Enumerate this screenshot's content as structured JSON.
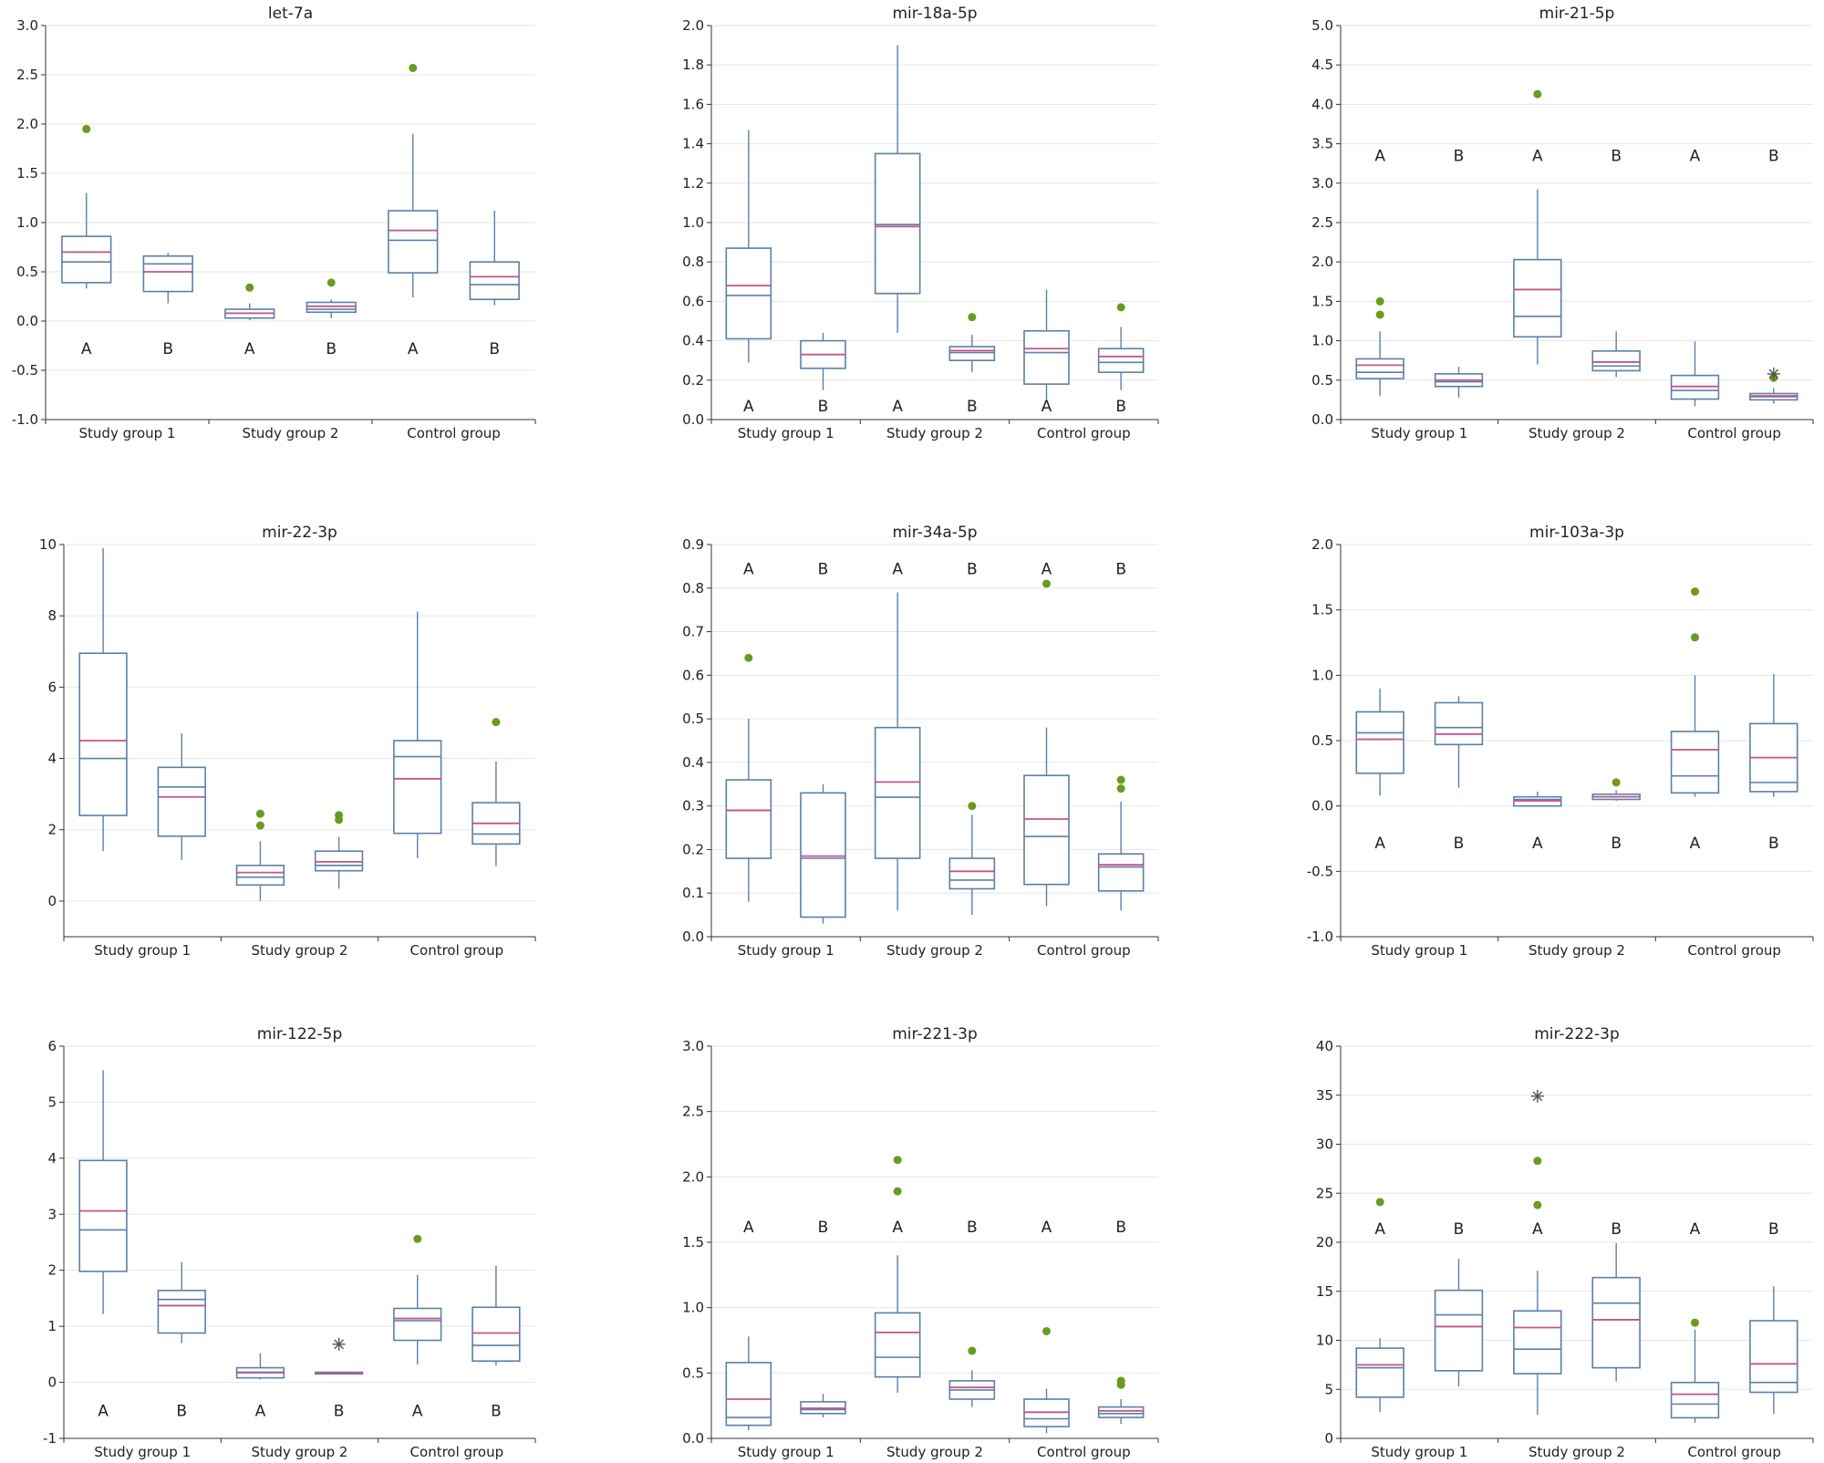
{
  "chart_data": [
    {
      "type": "box",
      "title": "let-7a",
      "ylim": [
        -1.0,
        3.0
      ],
      "yticks": [
        -1.0,
        -0.5,
        0.0,
        0.5,
        1.0,
        1.5,
        2.0,
        2.5,
        3.0
      ],
      "ytick_labels": [
        "-1.0",
        "-0.5",
        "0.0",
        "0.5",
        "1.0",
        "1.5",
        "2.0",
        "2.5",
        "3.0"
      ],
      "groups": [
        "Study group 1",
        "Study group 2",
        "Control group"
      ],
      "letter_y": -0.28,
      "boxes": [
        {
          "group": 0,
          "letter": "A",
          "min": 0.33,
          "q1": 0.39,
          "median": 0.6,
          "mean": 0.7,
          "q3": 0.86,
          "max": 1.3,
          "outliers": [
            1.95
          ],
          "extremes": []
        },
        {
          "group": 0,
          "letter": "B",
          "min": 0.18,
          "q1": 0.3,
          "median": 0.58,
          "mean": 0.5,
          "q3": 0.66,
          "max": 0.69,
          "outliers": [],
          "extremes": []
        },
        {
          "group": 1,
          "letter": "A",
          "min": 0.01,
          "q1": 0.03,
          "median": 0.08,
          "mean": 0.08,
          "q3": 0.12,
          "max": 0.18,
          "outliers": [
            0.34
          ],
          "extremes": []
        },
        {
          "group": 1,
          "letter": "B",
          "min": 0.03,
          "q1": 0.09,
          "median": 0.12,
          "mean": 0.15,
          "q3": 0.19,
          "max": 0.22,
          "outliers": [
            0.39
          ],
          "extremes": []
        },
        {
          "group": 2,
          "letter": "A",
          "min": 0.24,
          "q1": 0.49,
          "median": 0.82,
          "mean": 0.92,
          "q3": 1.12,
          "max": 1.9,
          "outliers": [
            2.57
          ],
          "extremes": []
        },
        {
          "group": 2,
          "letter": "B",
          "min": 0.16,
          "q1": 0.22,
          "median": 0.37,
          "mean": 0.45,
          "q3": 0.6,
          "max": 1.12,
          "outliers": [],
          "extremes": []
        }
      ]
    },
    {
      "type": "box",
      "title": "mir-18a-5p",
      "ylim": [
        0.0,
        2.0
      ],
      "yticks": [
        0.0,
        0.2,
        0.4,
        0.6,
        0.8,
        1.0,
        1.2,
        1.4,
        1.6,
        1.8,
        2.0
      ],
      "ytick_labels": [
        "0.0",
        "0.2",
        "0.4",
        "0.6",
        "0.8",
        "1.0",
        "1.2",
        "1.4",
        "1.6",
        "1.8",
        "2.0"
      ],
      "groups": [
        "Study group 1",
        "Study group 2",
        "Control group"
      ],
      "letter_y": 0.07,
      "boxes": [
        {
          "group": 0,
          "letter": "A",
          "min": 0.29,
          "q1": 0.41,
          "median": 0.63,
          "mean": 0.68,
          "q3": 0.87,
          "max": 1.47,
          "outliers": [],
          "extremes": []
        },
        {
          "group": 0,
          "letter": "B",
          "min": 0.15,
          "q1": 0.26,
          "median": 0.33,
          "mean": 0.33,
          "q3": 0.4,
          "max": 0.44,
          "outliers": [],
          "extremes": []
        },
        {
          "group": 1,
          "letter": "A",
          "min": 0.44,
          "q1": 0.64,
          "median": 0.99,
          "mean": 0.98,
          "q3": 1.35,
          "max": 1.9,
          "outliers": [],
          "extremes": []
        },
        {
          "group": 1,
          "letter": "B",
          "min": 0.24,
          "q1": 0.3,
          "median": 0.34,
          "mean": 0.35,
          "q3": 0.37,
          "max": 0.43,
          "outliers": [
            0.52
          ],
          "extremes": []
        },
        {
          "group": 2,
          "letter": "A",
          "min": 0.1,
          "q1": 0.18,
          "median": 0.34,
          "mean": 0.36,
          "q3": 0.45,
          "max": 0.66,
          "outliers": [],
          "extremes": []
        },
        {
          "group": 2,
          "letter": "B",
          "min": 0.15,
          "q1": 0.24,
          "median": 0.29,
          "mean": 0.32,
          "q3": 0.36,
          "max": 0.47,
          "outliers": [
            0.57
          ],
          "extremes": []
        }
      ]
    },
    {
      "type": "box",
      "title": "mir-21-5p",
      "ylim": [
        0.0,
        5.0
      ],
      "yticks": [
        0.0,
        0.5,
        1.0,
        1.5,
        2.0,
        2.5,
        3.0,
        3.5,
        4.0,
        4.5,
        5.0
      ],
      "ytick_labels": [
        "0.0",
        "0.5",
        "1.0",
        "1.5",
        "2.0",
        "2.5",
        "3.0",
        "3.5",
        "4.0",
        "4.5",
        "5.0"
      ],
      "groups": [
        "Study group 1",
        "Study group 2",
        "Control group"
      ],
      "letter_y": 3.35,
      "boxes": [
        {
          "group": 0,
          "letter": "A",
          "min": 0.3,
          "q1": 0.52,
          "median": 0.6,
          "mean": 0.69,
          "q3": 0.77,
          "max": 1.12,
          "outliers": [
            1.33,
            1.5
          ],
          "extremes": []
        },
        {
          "group": 0,
          "letter": "B",
          "min": 0.28,
          "q1": 0.42,
          "median": 0.48,
          "mean": 0.5,
          "q3": 0.58,
          "max": 0.67,
          "outliers": [],
          "extremes": []
        },
        {
          "group": 1,
          "letter": "A",
          "min": 0.7,
          "q1": 1.05,
          "median": 1.31,
          "mean": 1.65,
          "q3": 2.03,
          "max": 2.92,
          "outliers": [
            4.13
          ],
          "extremes": []
        },
        {
          "group": 1,
          "letter": "B",
          "min": 0.54,
          "q1": 0.62,
          "median": 0.68,
          "mean": 0.73,
          "q3": 0.87,
          "max": 1.12,
          "outliers": [],
          "extremes": []
        },
        {
          "group": 2,
          "letter": "A",
          "min": 0.17,
          "q1": 0.26,
          "median": 0.37,
          "mean": 0.42,
          "q3": 0.56,
          "max": 0.99,
          "outliers": [],
          "extremes": []
        },
        {
          "group": 2,
          "letter": "B",
          "min": 0.2,
          "q1": 0.25,
          "median": 0.29,
          "mean": 0.3,
          "q3": 0.33,
          "max": 0.4,
          "outliers": [
            0.53
          ],
          "extremes": [
            0.58
          ]
        }
      ]
    },
    {
      "type": "box",
      "title": "mir-22-3p",
      "ylim": [
        -1,
        10
      ],
      "yticks": [
        0,
        2,
        4,
        6,
        8,
        10
      ],
      "ytick_labels": [
        "0",
        "2",
        "4",
        "6",
        "8",
        "10"
      ],
      "groups": [
        "Study group 1",
        "Study group 2",
        "Control group"
      ],
      "letter_y": null,
      "boxes": [
        {
          "group": 0,
          "letter": "",
          "min": 1.4,
          "q1": 2.4,
          "median": 4.0,
          "mean": 4.5,
          "q3": 6.95,
          "max": 9.9,
          "outliers": [],
          "extremes": []
        },
        {
          "group": 0,
          "letter": "",
          "min": 1.15,
          "q1": 1.82,
          "median": 3.2,
          "mean": 2.92,
          "q3": 3.75,
          "max": 4.7,
          "outliers": [],
          "extremes": []
        },
        {
          "group": 1,
          "letter": "",
          "min": 0.0,
          "q1": 0.45,
          "median": 0.67,
          "mean": 0.8,
          "q3": 1.0,
          "max": 1.68,
          "outliers": [
            2.12,
            2.45
          ],
          "extremes": []
        },
        {
          "group": 1,
          "letter": "",
          "min": 0.35,
          "q1": 0.85,
          "median": 1.0,
          "mean": 1.1,
          "q3": 1.4,
          "max": 1.8,
          "outliers": [
            2.28,
            2.41
          ],
          "extremes": []
        },
        {
          "group": 2,
          "letter": "",
          "min": 1.2,
          "q1": 1.9,
          "median": 4.05,
          "mean": 3.43,
          "q3": 4.5,
          "max": 8.12,
          "outliers": [],
          "extremes": []
        },
        {
          "group": 2,
          "letter": "",
          "min": 0.98,
          "q1": 1.6,
          "median": 1.88,
          "mean": 2.18,
          "q3": 2.76,
          "max": 3.92,
          "outliers": [
            5.02
          ],
          "extremes": []
        }
      ]
    },
    {
      "type": "box",
      "title": "mir-34a-5p",
      "ylim": [
        0.0,
        0.9
      ],
      "yticks": [
        0.0,
        0.1,
        0.2,
        0.3,
        0.4,
        0.5,
        0.6,
        0.7,
        0.8,
        0.9
      ],
      "ytick_labels": [
        "0.0",
        "0.1",
        "0.2",
        "0.3",
        "0.4",
        "0.5",
        "0.6",
        "0.7",
        "0.8",
        "0.9"
      ],
      "groups": [
        "Study group 1",
        "Study group 2",
        "Control group"
      ],
      "letter_y": 0.845,
      "boxes": [
        {
          "group": 0,
          "letter": "A",
          "min": 0.08,
          "q1": 0.18,
          "median": 0.29,
          "mean": 0.29,
          "q3": 0.36,
          "max": 0.5,
          "outliers": [
            0.64
          ],
          "extremes": []
        },
        {
          "group": 0,
          "letter": "B",
          "min": 0.03,
          "q1": 0.045,
          "median": 0.18,
          "mean": 0.185,
          "q3": 0.33,
          "max": 0.35,
          "outliers": [],
          "extremes": []
        },
        {
          "group": 1,
          "letter": "A",
          "min": 0.06,
          "q1": 0.18,
          "median": 0.32,
          "mean": 0.355,
          "q3": 0.48,
          "max": 0.79,
          "outliers": [],
          "extremes": []
        },
        {
          "group": 1,
          "letter": "B",
          "min": 0.05,
          "q1": 0.11,
          "median": 0.13,
          "mean": 0.15,
          "q3": 0.18,
          "max": 0.28,
          "outliers": [
            0.3
          ],
          "extremes": []
        },
        {
          "group": 2,
          "letter": "A",
          "min": 0.07,
          "q1": 0.12,
          "median": 0.23,
          "mean": 0.27,
          "q3": 0.37,
          "max": 0.48,
          "outliers": [
            0.81
          ],
          "extremes": []
        },
        {
          "group": 2,
          "letter": "B",
          "min": 0.06,
          "q1": 0.105,
          "median": 0.16,
          "mean": 0.165,
          "q3": 0.19,
          "max": 0.31,
          "outliers": [
            0.34,
            0.36
          ],
          "extremes": []
        }
      ]
    },
    {
      "type": "box",
      "title": "mir-103a-3p",
      "ylim": [
        -1.0,
        2.0
      ],
      "yticks": [
        -1.0,
        -0.5,
        0.0,
        0.5,
        1.0,
        1.5,
        2.0
      ],
      "ytick_labels": [
        "-1.0",
        "-0.5",
        "0.0",
        "0.5",
        "1.0",
        "1.5",
        "2.0"
      ],
      "groups": [
        "Study group 1",
        "Study group 2",
        "Control group"
      ],
      "letter_y": -0.28,
      "boxes": [
        {
          "group": 0,
          "letter": "A",
          "min": 0.08,
          "q1": 0.25,
          "median": 0.56,
          "mean": 0.51,
          "q3": 0.72,
          "max": 0.9,
          "outliers": [],
          "extremes": []
        },
        {
          "group": 0,
          "letter": "B",
          "min": 0.14,
          "q1": 0.47,
          "median": 0.6,
          "mean": 0.55,
          "q3": 0.79,
          "max": 0.84,
          "outliers": [],
          "extremes": []
        },
        {
          "group": 1,
          "letter": "A",
          "min": 0.0,
          "q1": 0.0,
          "median": 0.05,
          "mean": 0.04,
          "q3": 0.07,
          "max": 0.11,
          "outliers": [],
          "extremes": []
        },
        {
          "group": 1,
          "letter": "B",
          "min": 0.04,
          "q1": 0.05,
          "median": 0.07,
          "mean": 0.07,
          "q3": 0.09,
          "max": 0.12,
          "outliers": [
            0.18
          ],
          "extremes": []
        },
        {
          "group": 2,
          "letter": "A",
          "min": 0.07,
          "q1": 0.1,
          "median": 0.23,
          "mean": 0.43,
          "q3": 0.57,
          "max": 1.0,
          "outliers": [
            1.29,
            1.64
          ],
          "extremes": []
        },
        {
          "group": 2,
          "letter": "B",
          "min": 0.07,
          "q1": 0.11,
          "median": 0.18,
          "mean": 0.37,
          "q3": 0.63,
          "max": 1.01,
          "outliers": [],
          "extremes": []
        }
      ]
    },
    {
      "type": "box",
      "title": "mir-122-5p",
      "ylim": [
        -1,
        6
      ],
      "yticks": [
        -1,
        0,
        1,
        2,
        3,
        4,
        5,
        6
      ],
      "ytick_labels": [
        "-1",
        "0",
        "1",
        "2",
        "3",
        "4",
        "5",
        "6"
      ],
      "groups": [
        "Study group 1",
        "Study group 2",
        "Control group"
      ],
      "letter_y": -0.5,
      "boxes": [
        {
          "group": 0,
          "letter": "A",
          "min": 1.22,
          "q1": 1.98,
          "median": 2.72,
          "mean": 3.06,
          "q3": 3.96,
          "max": 5.57,
          "outliers": [],
          "extremes": []
        },
        {
          "group": 0,
          "letter": "B",
          "min": 0.7,
          "q1": 0.88,
          "median": 1.48,
          "mean": 1.37,
          "q3": 1.64,
          "max": 2.15,
          "outliers": [],
          "extremes": []
        },
        {
          "group": 1,
          "letter": "A",
          "min": 0.05,
          "q1": 0.08,
          "median": 0.17,
          "mean": 0.18,
          "q3": 0.26,
          "max": 0.52,
          "outliers": [],
          "extremes": []
        },
        {
          "group": 1,
          "letter": "B",
          "min": 0.15,
          "q1": 0.15,
          "median": 0.16,
          "mean": 0.17,
          "q3": 0.18,
          "max": 0.18,
          "outliers": [],
          "extremes": [
            0.68
          ]
        },
        {
          "group": 2,
          "letter": "A",
          "min": 0.32,
          "q1": 0.75,
          "median": 1.1,
          "mean": 1.14,
          "q3": 1.32,
          "max": 1.92,
          "outliers": [
            2.56
          ],
          "extremes": []
        },
        {
          "group": 2,
          "letter": "B",
          "min": 0.3,
          "q1": 0.38,
          "median": 0.66,
          "mean": 0.88,
          "q3": 1.34,
          "max": 2.08,
          "outliers": [],
          "extremes": []
        }
      ]
    },
    {
      "type": "box",
      "title": "mir-221-3p",
      "ylim": [
        0.0,
        3.0
      ],
      "yticks": [
        0.0,
        0.5,
        1.0,
        1.5,
        2.0,
        2.5,
        3.0
      ],
      "ytick_labels": [
        "0.0",
        "0.5",
        "1.0",
        "1.5",
        "2.0",
        "2.5",
        "3.0"
      ],
      "groups": [
        "Study group 1",
        "Study group 2",
        "Control group"
      ],
      "letter_y": 1.62,
      "boxes": [
        {
          "group": 0,
          "letter": "A",
          "min": 0.06,
          "q1": 0.1,
          "median": 0.16,
          "mean": 0.3,
          "q3": 0.58,
          "max": 0.78,
          "outliers": [],
          "extremes": []
        },
        {
          "group": 0,
          "letter": "B",
          "min": 0.16,
          "q1": 0.19,
          "median": 0.22,
          "mean": 0.23,
          "q3": 0.28,
          "max": 0.34,
          "outliers": [],
          "extremes": []
        },
        {
          "group": 1,
          "letter": "A",
          "min": 0.35,
          "q1": 0.47,
          "median": 0.62,
          "mean": 0.81,
          "q3": 0.96,
          "max": 1.4,
          "outliers": [
            1.89,
            2.13
          ],
          "extremes": []
        },
        {
          "group": 1,
          "letter": "B",
          "min": 0.24,
          "q1": 0.3,
          "median": 0.37,
          "mean": 0.39,
          "q3": 0.44,
          "max": 0.52,
          "outliers": [
            0.67
          ],
          "extremes": []
        },
        {
          "group": 2,
          "letter": "A",
          "min": 0.04,
          "q1": 0.09,
          "median": 0.15,
          "mean": 0.2,
          "q3": 0.3,
          "max": 0.38,
          "outliers": [
            0.82
          ],
          "extremes": []
        },
        {
          "group": 2,
          "letter": "B",
          "min": 0.11,
          "q1": 0.16,
          "median": 0.19,
          "mean": 0.21,
          "q3": 0.24,
          "max": 0.3,
          "outliers": [
            0.41,
            0.44
          ],
          "extremes": []
        }
      ]
    },
    {
      "type": "box",
      "title": "mir-222-3p",
      "ylim": [
        0,
        40
      ],
      "yticks": [
        0,
        5,
        10,
        15,
        20,
        25,
        30,
        35,
        40
      ],
      "ytick_labels": [
        "0",
        "5",
        "10",
        "15",
        "20",
        "25",
        "30",
        "35",
        "40"
      ],
      "groups": [
        "Study group 1",
        "Study group 2",
        "Control group"
      ],
      "letter_y": 21.4,
      "boxes": [
        {
          "group": 0,
          "letter": "A",
          "min": 2.7,
          "q1": 4.2,
          "median": 7.2,
          "mean": 7.5,
          "q3": 9.2,
          "max": 10.2,
          "outliers": [
            24.1
          ],
          "extremes": []
        },
        {
          "group": 0,
          "letter": "B",
          "min": 5.3,
          "q1": 6.9,
          "median": 12.6,
          "mean": 11.4,
          "q3": 15.1,
          "max": 18.3,
          "outliers": [],
          "extremes": []
        },
        {
          "group": 1,
          "letter": "A",
          "min": 2.4,
          "q1": 6.6,
          "median": 9.1,
          "mean": 11.3,
          "q3": 13.0,
          "max": 17.1,
          "outliers": [
            23.8,
            28.3
          ],
          "extremes": [
            34.9
          ]
        },
        {
          "group": 1,
          "letter": "B",
          "min": 5.8,
          "q1": 7.2,
          "median": 13.8,
          "mean": 12.1,
          "q3": 16.4,
          "max": 19.9,
          "outliers": [],
          "extremes": []
        },
        {
          "group": 2,
          "letter": "A",
          "min": 1.6,
          "q1": 2.1,
          "median": 3.5,
          "mean": 4.5,
          "q3": 5.7,
          "max": 11.1,
          "outliers": [
            11.8
          ],
          "extremes": []
        },
        {
          "group": 2,
          "letter": "B",
          "min": 2.5,
          "q1": 4.7,
          "median": 5.7,
          "mean": 7.6,
          "q3": 12.0,
          "max": 15.5,
          "outliers": [],
          "extremes": []
        }
      ]
    }
  ]
}
